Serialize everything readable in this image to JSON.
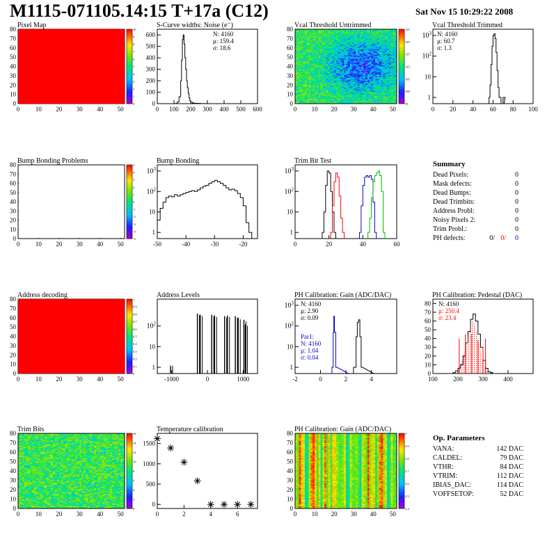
{
  "header": {
    "title": "M1115-071105.14:15 T+17a (C12)",
    "date": "Sat Nov 15 10:29:22 2008"
  },
  "colors": {
    "red": "#ff0000",
    "blue": "#0000cc",
    "green": "#00bb00",
    "black": "#000000"
  },
  "chart_data": [
    {
      "id": "pixel-map",
      "type": "heatmap",
      "title": "Pixel Map",
      "xlim": [
        0,
        52
      ],
      "ylim": [
        0,
        80
      ],
      "xticks": [
        0,
        10,
        20,
        30,
        40,
        50
      ],
      "yticks": [
        0,
        10,
        20,
        30,
        40,
        50,
        60,
        70,
        80
      ],
      "fill": "uniform-max",
      "zticks": [
        "0",
        "1",
        "2",
        "3",
        "4",
        "5",
        "6",
        "7",
        "8",
        "9",
        "10"
      ]
    },
    {
      "id": "scurve-noise",
      "type": "line",
      "title": "S-Curve widths: Noise (e⁻)",
      "xlim": [
        0,
        600
      ],
      "ylim": [
        0,
        650
      ],
      "xticks": [
        0,
        100,
        200,
        300,
        400,
        500,
        600
      ],
      "yticks": [
        0,
        100,
        200,
        300,
        400,
        500,
        600
      ],
      "x": [
        110,
        120,
        130,
        140,
        145,
        150,
        155,
        160,
        165,
        170,
        175,
        180,
        185,
        190,
        195,
        200,
        210,
        220,
        240,
        260,
        300
      ],
      "values": [
        2,
        15,
        60,
        200,
        380,
        560,
        600,
        520,
        400,
        300,
        200,
        140,
        90,
        50,
        25,
        12,
        6,
        3,
        2,
        1,
        0
      ],
      "stats": [
        "N: 4160",
        "μ: 159.4",
        "σ: 18.6"
      ]
    },
    {
      "id": "vcal-untrimmed",
      "type": "heatmap",
      "title": "Vcal Threshold Untrimmed",
      "xlim": [
        0,
        52
      ],
      "ylim": [
        0,
        80
      ],
      "xticks": [
        0,
        10,
        20,
        30,
        40,
        50
      ],
      "yticks": [
        0,
        10,
        20,
        30,
        40,
        50,
        60,
        70,
        80
      ],
      "fill": "noisy-blue-center",
      "zticks": [
        "95",
        "100",
        "105",
        "110",
        "115",
        "120",
        "125"
      ]
    },
    {
      "id": "vcal-trimmed",
      "type": "line",
      "title": "Vcal Threshold Trimmed",
      "scale": "log",
      "xlim": [
        0,
        100
      ],
      "ylim": [
        0.5,
        2000
      ],
      "xticks": [
        0,
        20,
        40,
        60,
        80,
        100
      ],
      "yticks": [
        "1",
        "10",
        "10²",
        "10³"
      ],
      "x": [
        56,
        57,
        58,
        59,
        60,
        61,
        62,
        63,
        64,
        65,
        66,
        68,
        70
      ],
      "values": [
        1,
        4,
        40,
        300,
        1000,
        1200,
        700,
        150,
        20,
        3,
        1,
        0,
        1
      ],
      "stats": [
        "N: 4160",
        "μ: 60.7",
        "σ: 1.3"
      ]
    },
    {
      "id": "bump-bonding-problems",
      "type": "heatmap",
      "title": "Bump Bonding Problems",
      "xlim": [
        0,
        52
      ],
      "ylim": [
        0,
        80
      ],
      "xticks": [
        0,
        10,
        20,
        30,
        40,
        50
      ],
      "yticks": [
        0,
        10,
        20,
        30,
        40,
        50,
        60,
        70,
        80
      ],
      "fill": "empty",
      "zticks": [
        "-5",
        "-4",
        "-3",
        "-2",
        "-1",
        "0",
        "1",
        "2",
        "3",
        "4",
        "5"
      ]
    },
    {
      "id": "bump-bonding",
      "type": "line",
      "title": "Bump Bonding",
      "scale": "log",
      "xlim": [
        -50,
        -15
      ],
      "ylim": [
        0.5,
        2000
      ],
      "xticks": [
        -50,
        -40,
        -30,
        -20
      ],
      "yticks": [
        "1",
        "10",
        "10²",
        "10³"
      ],
      "x": [
        -50,
        -49,
        -48,
        -47,
        -46,
        -45,
        -44,
        -43,
        -42,
        -41,
        -40,
        -39,
        -38,
        -37,
        -36,
        -35,
        -34,
        -33,
        -32,
        -31,
        -30,
        -29,
        -28,
        -27,
        -26,
        -25,
        -24,
        -23,
        -22,
        -21,
        -20,
        -19,
        -18
      ],
      "values": [
        4,
        15,
        30,
        50,
        60,
        55,
        70,
        60,
        70,
        80,
        90,
        100,
        110,
        100,
        120,
        150,
        180,
        200,
        250,
        300,
        350,
        300,
        250,
        200,
        150,
        120,
        130,
        110,
        80,
        50,
        20,
        3,
        1
      ],
      "stats": []
    },
    {
      "id": "trim-bit-test",
      "type": "line",
      "title": "Trim Bit Test",
      "scale": "log",
      "xlim": [
        0,
        60
      ],
      "ylim": [
        0.5,
        2000
      ],
      "xticks": [
        0,
        20,
        40,
        60
      ],
      "yticks": [
        "1",
        "10",
        "10²",
        "10³"
      ],
      "series": [
        {
          "color": "black",
          "x": [
            16,
            17,
            18,
            19,
            20,
            21,
            22,
            23
          ],
          "values": [
            1,
            10,
            200,
            1000,
            800,
            100,
            10,
            1
          ]
        },
        {
          "color": "red",
          "x": [
            21,
            22,
            23,
            24,
            25,
            26,
            27,
            28
          ],
          "values": [
            1,
            20,
            300,
            800,
            500,
            60,
            5,
            1
          ]
        },
        {
          "color": "blue",
          "x": [
            38,
            39,
            40,
            41,
            42,
            43,
            44,
            45,
            46,
            47
          ],
          "values": [
            1,
            20,
            200,
            500,
            600,
            500,
            600,
            400,
            30,
            1
          ]
        },
        {
          "color": "green",
          "x": [
            43,
            44,
            45,
            46,
            47,
            48,
            49,
            50,
            51,
            52
          ],
          "values": [
            1,
            5,
            50,
            300,
            600,
            800,
            1000,
            600,
            100,
            1
          ]
        }
      ],
      "stats": []
    },
    {
      "id": "address-decoding",
      "type": "heatmap",
      "title": "Address decoding",
      "xlim": [
        0,
        52
      ],
      "ylim": [
        0,
        80
      ],
      "xticks": [
        0,
        10,
        20,
        30,
        40,
        50
      ],
      "yticks": [
        0,
        10,
        20,
        30,
        40,
        50,
        60,
        70,
        80
      ],
      "fill": "uniform-max",
      "zticks": [
        "0",
        "0.1",
        "0.2",
        "0.3",
        "0.4",
        "0.5",
        "0.6",
        "0.7",
        "0.8",
        "0.9",
        "1"
      ]
    },
    {
      "id": "address-levels",
      "type": "bar",
      "title": "Address Levels",
      "scale": "log",
      "xlim": [
        -1400,
        1400
      ],
      "ylim": [
        0.5,
        2000
      ],
      "xticks": [
        -1000,
        0,
        1000
      ],
      "yticks": [
        "1",
        "10",
        "10²"
      ],
      "peaks": [
        [
          -1030,
          1
        ],
        [
          -280,
          400
        ],
        [
          -200,
          350
        ],
        [
          120,
          350
        ],
        [
          200,
          320
        ],
        [
          480,
          300
        ],
        [
          560,
          320
        ],
        [
          780,
          300
        ],
        [
          860,
          250
        ],
        [
          1020,
          200
        ],
        [
          1060,
          120
        ]
      ],
      "stats": []
    },
    {
      "id": "ph-gain",
      "type": "line",
      "title": "PH Calibration: Gain (ADC/DAC)",
      "scale": "log",
      "xlim": [
        -2,
        6
      ],
      "ylim": [
        0.5,
        2000
      ],
      "xticks": [
        -2,
        0,
        2,
        4
      ],
      "yticks": [
        "1",
        "10",
        "10²",
        "10³"
      ],
      "series": [
        {
          "color": "blue",
          "x": [
            0.9,
            1.0,
            1.05,
            1.1,
            1.2
          ],
          "values": [
            1,
            50,
            300,
            50,
            1
          ]
        },
        {
          "color": "black",
          "x": [
            2.6,
            2.8,
            2.9,
            3.0,
            3.1,
            3.2
          ],
          "values": [
            1,
            30,
            150,
            200,
            30,
            1
          ]
        }
      ],
      "stats": [
        "N: 4160",
        "μ: 2.90",
        "σ: 0.09"
      ],
      "stats2_title": "Par1:",
      "stats2": [
        "N: 4160",
        "μ: 1.04",
        "σ: 0.04"
      ]
    },
    {
      "id": "ph-pedestal",
      "type": "line",
      "title": "PH Calibration: Pedestal (DAC)",
      "xlim": [
        100,
        500
      ],
      "ylim": [
        0,
        85
      ],
      "xticks": [
        100,
        200,
        300,
        400
      ],
      "yticks": [
        0,
        10,
        20,
        30,
        40,
        50,
        60,
        70,
        80
      ],
      "x": [
        180,
        190,
        200,
        210,
        220,
        230,
        240,
        250,
        260,
        270,
        280,
        290,
        300,
        310,
        320,
        330
      ],
      "values": [
        1,
        3,
        6,
        10,
        20,
        35,
        48,
        62,
        68,
        60,
        45,
        30,
        15,
        6,
        2,
        1
      ],
      "red_series": [
        [
          205,
          40
        ],
        [
          230,
          45
        ],
        [
          255,
          45
        ],
        [
          280,
          38
        ],
        [
          300,
          30
        ],
        [
          310,
          40
        ]
      ],
      "stats": [
        "N: 4160",
        "μ: 250.4",
        "σ: 23.4"
      ]
    },
    {
      "id": "trim-bits",
      "type": "heatmap",
      "title": "Trim Bits",
      "xlim": [
        0,
        52
      ],
      "ylim": [
        0,
        80
      ],
      "xticks": [
        0,
        10,
        20,
        30,
        40,
        50
      ],
      "yticks": [
        0,
        10,
        20,
        30,
        40,
        50,
        60,
        70,
        80
      ],
      "fill": "noisy-green",
      "zticks": [
        "0",
        "2",
        "4",
        "6",
        "8",
        "10",
        "12",
        "14",
        "16"
      ]
    },
    {
      "id": "temperature-calibration",
      "type": "scatter",
      "title": "Temperature calibration",
      "xlim": [
        0,
        7.5
      ],
      "ylim": [
        -100,
        1750
      ],
      "xticks": [
        0,
        2,
        4,
        6
      ],
      "yticks": [
        0,
        500,
        1000,
        1500
      ],
      "x": [
        0,
        1,
        2,
        3,
        4,
        5,
        6,
        7
      ],
      "values": [
        1620,
        1390,
        1040,
        580,
        0,
        0,
        0,
        0
      ]
    },
    {
      "id": "ph-gain-map",
      "type": "heatmap",
      "title": "PH Calibration: Gain (ADC/DAC)",
      "xlim": [
        0,
        52
      ],
      "ylim": [
        0,
        80
      ],
      "xticks": [
        0,
        10,
        20,
        30,
        40,
        50
      ],
      "yticks": [
        0,
        10,
        20,
        30,
        40,
        50,
        60,
        70,
        80
      ],
      "fill": "column-stripes",
      "zticks": [
        "2.4",
        "2.5",
        "2.6",
        "2.7",
        "2.8",
        "2.9",
        "3"
      ]
    }
  ],
  "summary": {
    "title": "Summary",
    "rows": [
      {
        "label": "Dead Pixels:",
        "value": "0"
      },
      {
        "label": "Mask defects:",
        "value": "0"
      },
      {
        "label": "Dead Bumps:",
        "value": "0"
      },
      {
        "label": "Dead Trimbits:",
        "value": "0"
      },
      {
        "label": "Address Probl:",
        "value": "0"
      },
      {
        "label": "Noisy Pixels 2:",
        "value": "0"
      },
      {
        "label": "Trim Probl.:",
        "value": "0"
      }
    ],
    "ph_label": "PH defects:",
    "ph_values": [
      "0/",
      "0/",
      "0"
    ]
  },
  "op_params": {
    "title": "Op. Parameters",
    "rows": [
      {
        "label": "VANA:",
        "value": "142 DAC"
      },
      {
        "label": "CALDEL:",
        "value": "79 DAC"
      },
      {
        "label": "VTHR:",
        "value": "84 DAC"
      },
      {
        "label": "VTRIM:",
        "value": "112 DAC"
      },
      {
        "label": "IBIAS_DAC:",
        "value": "114 DAC"
      },
      {
        "label": "VOFFSETOP:",
        "value": "52 DAC"
      }
    ]
  }
}
